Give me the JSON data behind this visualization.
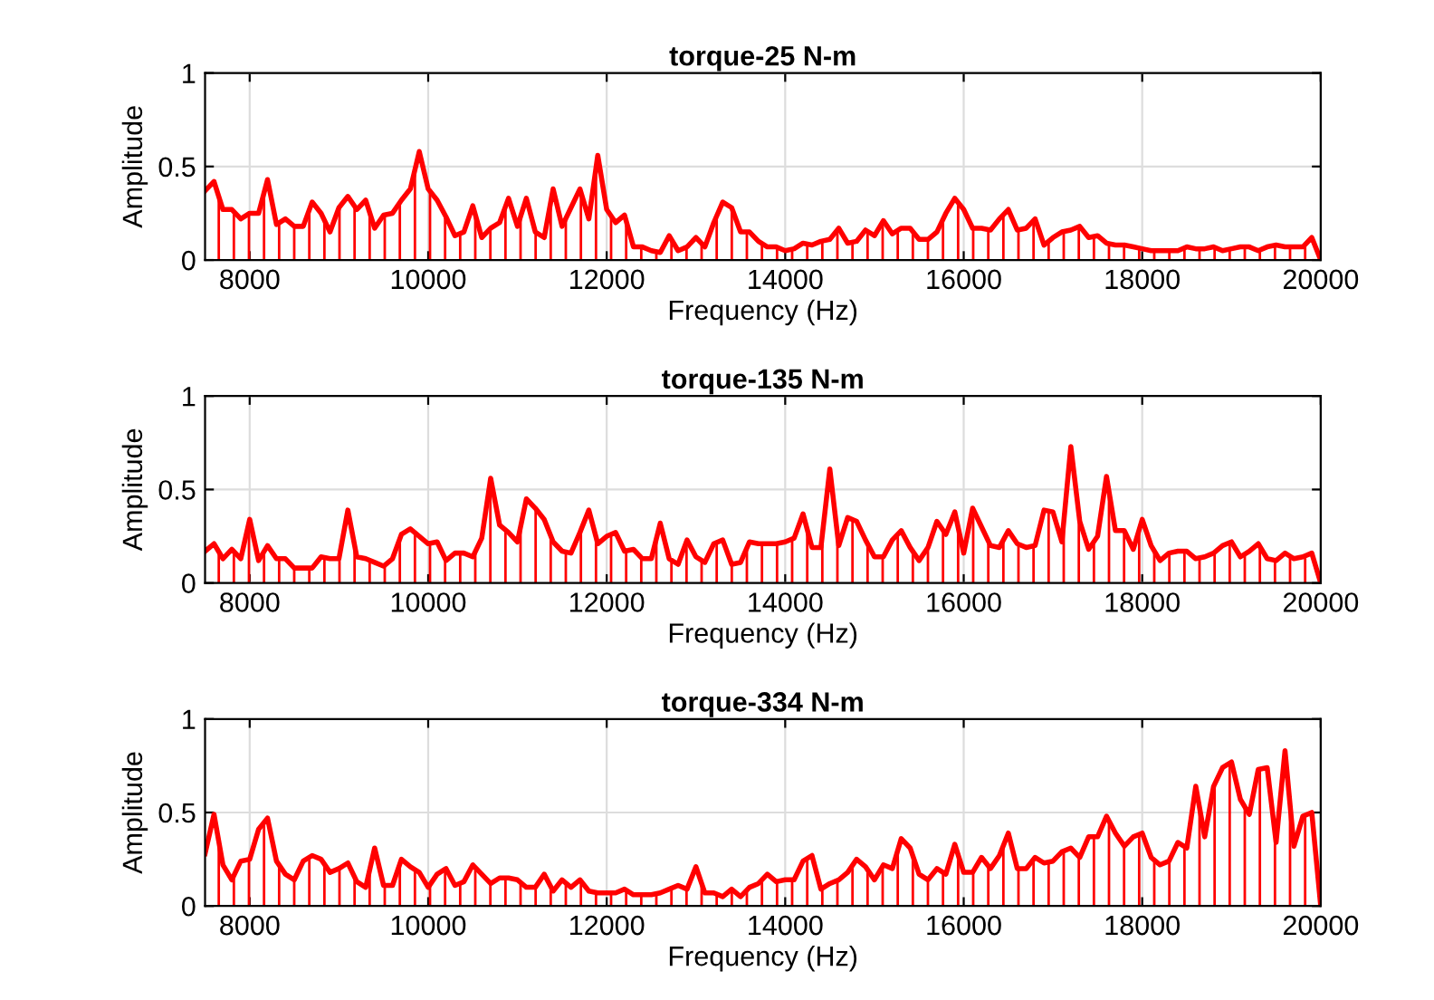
{
  "chart_data": [
    {
      "type": "area",
      "title": "torque-25 N-m",
      "xlabel": "Frequency (Hz)",
      "ylabel": "Amplitude",
      "marker": "none",
      "grid": true,
      "xlim": [
        7500,
        20000
      ],
      "xticks": [
        8000,
        10000,
        12000,
        14000,
        16000,
        18000,
        20000
      ],
      "ylim": [
        0,
        1
      ],
      "yticks": [
        0,
        0.5,
        1
      ],
      "x": [
        7500,
        7600,
        7700,
        7800,
        7900,
        8000,
        8100,
        8200,
        8300,
        8400,
        8500,
        8600,
        8700,
        8800,
        8900,
        9000,
        9100,
        9200,
        9300,
        9400,
        9500,
        9600,
        9700,
        9800,
        9900,
        10000,
        10100,
        10200,
        10300,
        10400,
        10500,
        10600,
        10700,
        10800,
        10900,
        11000,
        11100,
        11200,
        11300,
        11400,
        11500,
        11600,
        11700,
        11800,
        11900,
        12000,
        12100,
        12200,
        12300,
        12400,
        12500,
        12600,
        12700,
        12800,
        12900,
        13000,
        13100,
        13200,
        13300,
        13400,
        13500,
        13600,
        13700,
        13800,
        13900,
        14000,
        14100,
        14200,
        14300,
        14400,
        14500,
        14600,
        14700,
        14800,
        14900,
        15000,
        15100,
        15200,
        15300,
        15400,
        15500,
        15600,
        15700,
        15800,
        15900,
        16000,
        16100,
        16200,
        16300,
        16400,
        16500,
        16600,
        16700,
        16800,
        16900,
        17000,
        17100,
        17200,
        17300,
        17400,
        17500,
        17600,
        17700,
        17800,
        17900,
        18000,
        18100,
        18200,
        18300,
        18400,
        18500,
        18600,
        18700,
        18800,
        18900,
        19000,
        19100,
        19200,
        19300,
        19400,
        19500,
        19600,
        19700,
        19800,
        19900,
        20000
      ],
      "series": [
        {
          "color": "#ff0000",
          "values": [
            0.37,
            0.42,
            0.27,
            0.27,
            0.22,
            0.25,
            0.25,
            0.43,
            0.19,
            0.22,
            0.18,
            0.18,
            0.31,
            0.25,
            0.15,
            0.28,
            0.34,
            0.27,
            0.32,
            0.17,
            0.24,
            0.25,
            0.32,
            0.38,
            0.58,
            0.38,
            0.32,
            0.23,
            0.13,
            0.15,
            0.29,
            0.12,
            0.17,
            0.2,
            0.33,
            0.18,
            0.33,
            0.15,
            0.12,
            0.38,
            0.18,
            0.28,
            0.38,
            0.22,
            0.56,
            0.27,
            0.2,
            0.24,
            0.07,
            0.07,
            0.05,
            0.04,
            0.13,
            0.05,
            0.07,
            0.12,
            0.07,
            0.2,
            0.31,
            0.28,
            0.15,
            0.15,
            0.1,
            0.07,
            0.07,
            0.05,
            0.06,
            0.09,
            0.08,
            0.1,
            0.11,
            0.17,
            0.09,
            0.1,
            0.16,
            0.13,
            0.21,
            0.14,
            0.17,
            0.17,
            0.11,
            0.11,
            0.15,
            0.25,
            0.33,
            0.27,
            0.17,
            0.17,
            0.16,
            0.22,
            0.27,
            0.16,
            0.17,
            0.22,
            0.08,
            0.12,
            0.15,
            0.16,
            0.18,
            0.12,
            0.13,
            0.09,
            0.08,
            0.08,
            0.07,
            0.06,
            0.05,
            0.05,
            0.05,
            0.05,
            0.07,
            0.06,
            0.06,
            0.07,
            0.05,
            0.06,
            0.07,
            0.07,
            0.05,
            0.07,
            0.08,
            0.07,
            0.07,
            0.07,
            0.12,
            0
          ]
        }
      ]
    },
    {
      "type": "area",
      "title": "torque-135 N-m",
      "xlabel": "Frequency (Hz)",
      "ylabel": "Amplitude",
      "marker": "none",
      "grid": true,
      "xlim": [
        7500,
        20000
      ],
      "xticks": [
        8000,
        10000,
        12000,
        14000,
        16000,
        18000,
        20000
      ],
      "ylim": [
        0,
        1
      ],
      "yticks": [
        0,
        0.5,
        1
      ],
      "x": [
        7500,
        7600,
        7700,
        7800,
        7900,
        8000,
        8100,
        8200,
        8300,
        8400,
        8500,
        8600,
        8700,
        8800,
        8900,
        9000,
        9100,
        9200,
        9300,
        9400,
        9500,
        9600,
        9700,
        9800,
        9900,
        10000,
        10100,
        10200,
        10300,
        10400,
        10500,
        10600,
        10700,
        10800,
        10900,
        11000,
        11100,
        11200,
        11300,
        11400,
        11500,
        11600,
        11700,
        11800,
        11900,
        12000,
        12100,
        12200,
        12300,
        12400,
        12500,
        12600,
        12700,
        12800,
        12900,
        13000,
        13100,
        13200,
        13300,
        13400,
        13500,
        13600,
        13700,
        13800,
        13900,
        14000,
        14100,
        14200,
        14300,
        14400,
        14500,
        14600,
        14700,
        14800,
        14900,
        15000,
        15100,
        15200,
        15300,
        15400,
        15500,
        15600,
        15700,
        15800,
        15900,
        16000,
        16100,
        16200,
        16300,
        16400,
        16500,
        16600,
        16700,
        16800,
        16900,
        17000,
        17100,
        17200,
        17300,
        17400,
        17500,
        17600,
        17700,
        17800,
        17900,
        18000,
        18100,
        18200,
        18300,
        18400,
        18500,
        18600,
        18700,
        18800,
        18900,
        19000,
        19100,
        19200,
        19300,
        19400,
        19500,
        19600,
        19700,
        19800,
        19900,
        20000
      ],
      "series": [
        {
          "color": "#ff0000",
          "values": [
            0.17,
            0.21,
            0.13,
            0.18,
            0.13,
            0.34,
            0.12,
            0.2,
            0.13,
            0.13,
            0.08,
            0.08,
            0.08,
            0.14,
            0.13,
            0.13,
            0.39,
            0.14,
            0.13,
            0.11,
            0.09,
            0.13,
            0.26,
            0.29,
            0.25,
            0.21,
            0.22,
            0.12,
            0.16,
            0.16,
            0.14,
            0.24,
            0.56,
            0.31,
            0.27,
            0.22,
            0.45,
            0.4,
            0.34,
            0.22,
            0.17,
            0.16,
            0.27,
            0.39,
            0.21,
            0.25,
            0.27,
            0.17,
            0.18,
            0.13,
            0.13,
            0.32,
            0.13,
            0.1,
            0.23,
            0.14,
            0.11,
            0.21,
            0.23,
            0.1,
            0.11,
            0.22,
            0.21,
            0.21,
            0.21,
            0.22,
            0.24,
            0.37,
            0.19,
            0.19,
            0.61,
            0.2,
            0.35,
            0.33,
            0.23,
            0.14,
            0.14,
            0.23,
            0.28,
            0.19,
            0.12,
            0.19,
            0.33,
            0.26,
            0.38,
            0.16,
            0.4,
            0.3,
            0.2,
            0.19,
            0.28,
            0.21,
            0.19,
            0.2,
            0.39,
            0.38,
            0.22,
            0.73,
            0.33,
            0.18,
            0.25,
            0.57,
            0.28,
            0.28,
            0.18,
            0.34,
            0.2,
            0.12,
            0.16,
            0.17,
            0.17,
            0.13,
            0.14,
            0.16,
            0.2,
            0.22,
            0.14,
            0.17,
            0.21,
            0.13,
            0.12,
            0.16,
            0.13,
            0.14,
            0.16,
            0
          ]
        }
      ]
    },
    {
      "type": "area",
      "title": "torque-334 N-m",
      "xlabel": "Frequency (Hz)",
      "ylabel": "Amplitude",
      "marker": "none",
      "grid": true,
      "xlim": [
        7500,
        20000
      ],
      "xticks": [
        8000,
        10000,
        12000,
        14000,
        16000,
        18000,
        20000
      ],
      "ylim": [
        0,
        1
      ],
      "yticks": [
        0,
        0.5,
        1
      ],
      "x": [
        7500,
        7600,
        7700,
        7800,
        7900,
        8000,
        8100,
        8200,
        8300,
        8400,
        8500,
        8600,
        8700,
        8800,
        8900,
        9000,
        9100,
        9200,
        9300,
        9400,
        9500,
        9600,
        9700,
        9800,
        9900,
        10000,
        10100,
        10200,
        10300,
        10400,
        10500,
        10600,
        10700,
        10800,
        10900,
        11000,
        11100,
        11200,
        11300,
        11400,
        11500,
        11600,
        11700,
        11800,
        11900,
        12000,
        12100,
        12200,
        12300,
        12400,
        12500,
        12600,
        12700,
        12800,
        12900,
        13000,
        13100,
        13200,
        13300,
        13400,
        13500,
        13600,
        13700,
        13800,
        13900,
        14000,
        14100,
        14200,
        14300,
        14400,
        14500,
        14600,
        14700,
        14800,
        14900,
        15000,
        15100,
        15200,
        15300,
        15400,
        15500,
        15600,
        15700,
        15800,
        15900,
        16000,
        16100,
        16200,
        16300,
        16400,
        16500,
        16600,
        16700,
        16800,
        16900,
        17000,
        17100,
        17200,
        17300,
        17400,
        17500,
        17600,
        17700,
        17800,
        17900,
        18000,
        18100,
        18200,
        18300,
        18400,
        18500,
        18600,
        18700,
        18800,
        18900,
        19000,
        19100,
        19200,
        19300,
        19400,
        19500,
        19600,
        19700,
        19800,
        19900,
        20000
      ],
      "series": [
        {
          "color": "#ff0000",
          "values": [
            0.28,
            0.49,
            0.22,
            0.14,
            0.24,
            0.25,
            0.41,
            0.47,
            0.24,
            0.17,
            0.14,
            0.24,
            0.27,
            0.25,
            0.18,
            0.2,
            0.23,
            0.13,
            0.1,
            0.31,
            0.11,
            0.11,
            0.25,
            0.21,
            0.18,
            0.1,
            0.17,
            0.2,
            0.11,
            0.13,
            0.22,
            0.17,
            0.12,
            0.15,
            0.15,
            0.14,
            0.1,
            0.1,
            0.17,
            0.08,
            0.14,
            0.1,
            0.14,
            0.08,
            0.07,
            0.07,
            0.07,
            0.09,
            0.06,
            0.06,
            0.06,
            0.07,
            0.09,
            0.11,
            0.09,
            0.21,
            0.07,
            0.07,
            0.05,
            0.09,
            0.05,
            0.1,
            0.12,
            0.17,
            0.13,
            0.14,
            0.14,
            0.24,
            0.27,
            0.09,
            0.12,
            0.14,
            0.18,
            0.25,
            0.21,
            0.14,
            0.22,
            0.2,
            0.36,
            0.31,
            0.17,
            0.14,
            0.2,
            0.17,
            0.33,
            0.18,
            0.18,
            0.26,
            0.2,
            0.27,
            0.39,
            0.2,
            0.2,
            0.26,
            0.23,
            0.24,
            0.29,
            0.31,
            0.26,
            0.37,
            0.37,
            0.48,
            0.39,
            0.32,
            0.37,
            0.39,
            0.26,
            0.22,
            0.24,
            0.34,
            0.31,
            0.64,
            0.37,
            0.64,
            0.74,
            0.77,
            0.57,
            0.49,
            0.73,
            0.74,
            0.34,
            0.83,
            0.32,
            0.48,
            0.5,
            0
          ]
        }
      ]
    }
  ]
}
